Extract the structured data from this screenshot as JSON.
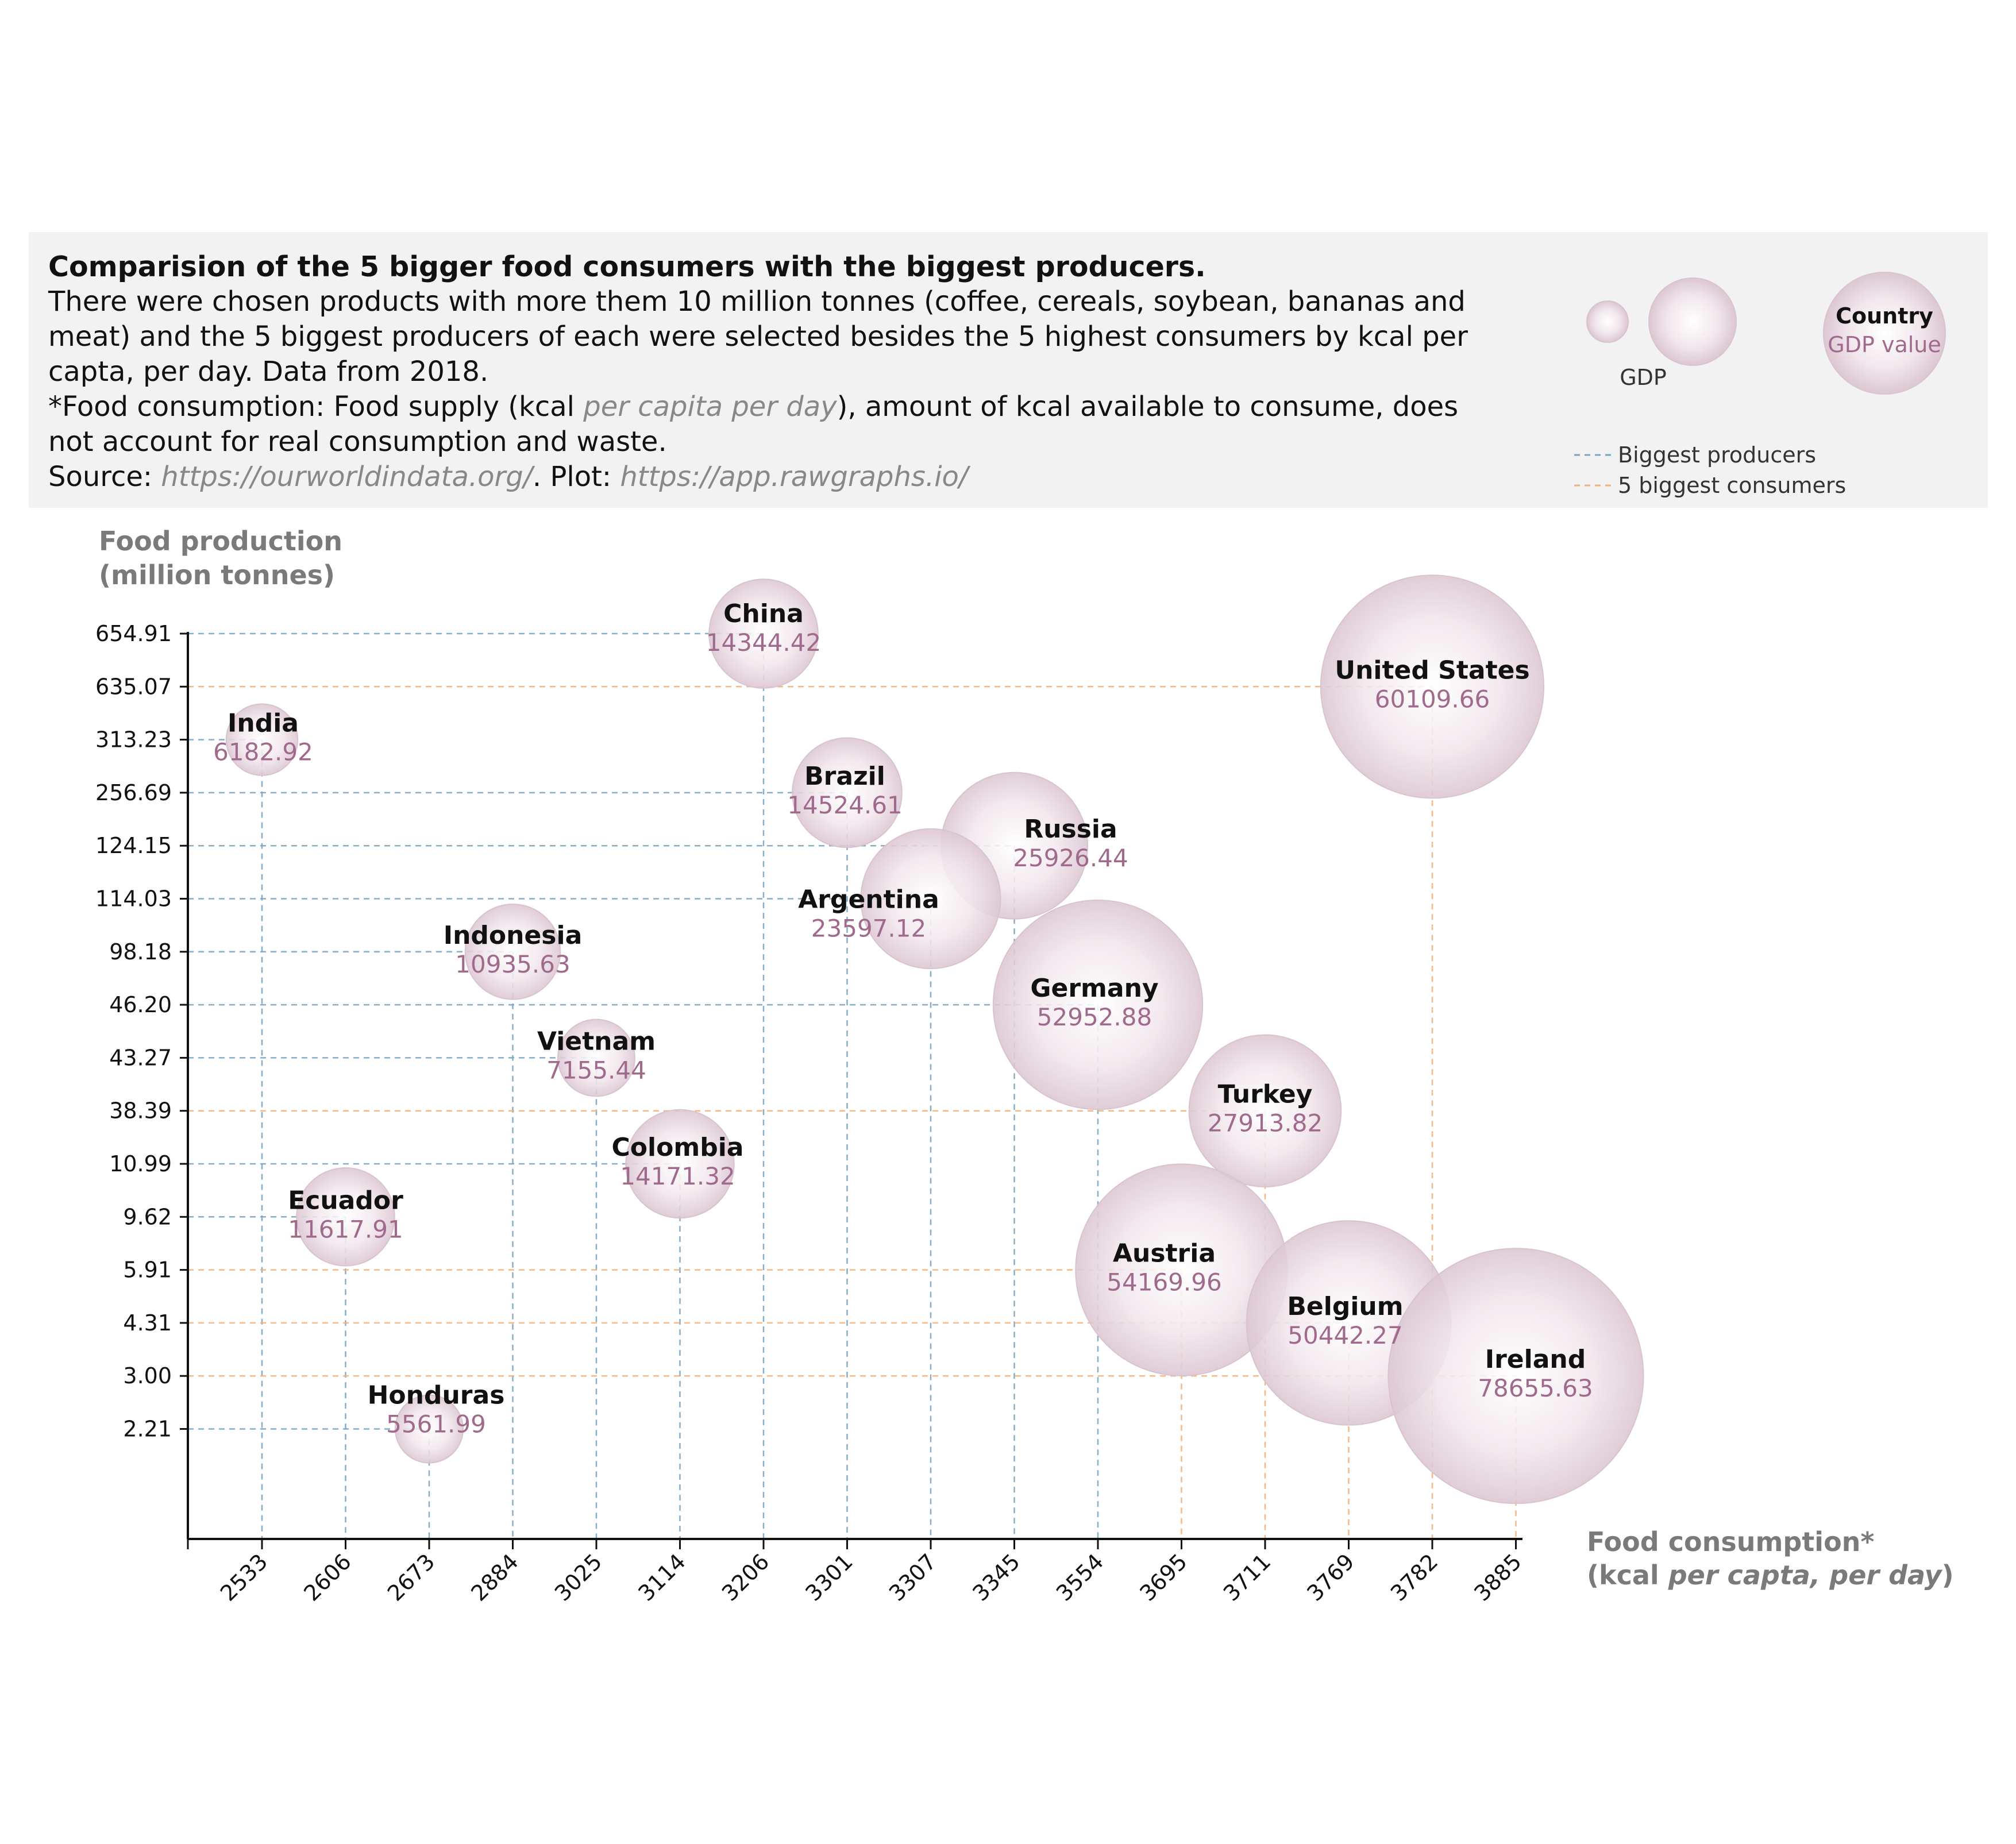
{
  "description": {
    "title": "Comparision of the 5 bigger food consumers with the biggest producers.",
    "line1": "There were chosen products with more them 10 million tonnes (coffee, cereals, soybean, bananas and meat) and the 5 biggest producers of each were selected besides the 5 highest consumers by kcal per capta, per day. Data from 2018.",
    "line2_pre": "*Food consumption: Food supply (kcal ",
    "line2_em": "per capita per day",
    "line2_post": "), amount of kcal available to consume, does not account for real consumption and waste.",
    "source_pre": "Source: ",
    "source_url": "https://ourworldindata.org/",
    "plot_pre": ". Plot: ",
    "plot_url": "https://app.rawgraphs.io/"
  },
  "legend": {
    "size_label": "GDP",
    "sample_country": "Country",
    "sample_value": "GDP value",
    "producers": "Biggest producers",
    "consumers": "5 biggest consumers"
  },
  "colors": {
    "bubble": "#e8d8e0",
    "bubble_edge": "#c9aebd",
    "gdp_text": "#a06a8c",
    "producers_line": "#7aa6c2",
    "consumers_line": "#f2b27a"
  },
  "chart_data": {
    "type": "scatter",
    "encoding": "bubble size = GDP",
    "xlabel": "Food consumption*",
    "xlabel_unit_pre": "(kcal ",
    "xlabel_unit_em": "per capta, per day",
    "xlabel_unit_post": ")",
    "ylabel_line1": "Food production",
    "ylabel_line2": "(million tonnes)",
    "x_ticks": [
      "2533",
      "2606",
      "2673",
      "2884",
      "3025",
      "3114",
      "3206",
      "3301",
      "3307",
      "3345",
      "3554",
      "3695",
      "3711",
      "3769",
      "3782",
      "3885"
    ],
    "y_ticks": [
      "654.91",
      "635.07",
      "313.23",
      "256.69",
      "124.15",
      "114.03",
      "98.18",
      "46.20",
      "43.27",
      "38.39",
      "10.99",
      "9.62",
      "5.91",
      "4.31",
      "3.00",
      "2.21"
    ],
    "points": [
      {
        "country": "China",
        "x": 3206,
        "y": 654.91,
        "gdp": 14344.42,
        "group": "producer"
      },
      {
        "country": "United States",
        "x": 3782,
        "y": 635.07,
        "gdp": 60109.66,
        "group": "consumer"
      },
      {
        "country": "India",
        "x": 2533,
        "y": 313.23,
        "gdp": 6182.92,
        "group": "producer"
      },
      {
        "country": "Brazil",
        "x": 3301,
        "y": 256.69,
        "gdp": 14524.61,
        "group": "producer"
      },
      {
        "country": "Russia",
        "x": 3345,
        "y": 124.15,
        "gdp": 25926.44,
        "group": "producer"
      },
      {
        "country": "Argentina",
        "x": 3307,
        "y": 114.03,
        "gdp": 23597.12,
        "group": "producer"
      },
      {
        "country": "Indonesia",
        "x": 2884,
        "y": 98.18,
        "gdp": 10935.63,
        "group": "producer"
      },
      {
        "country": "Germany",
        "x": 3554,
        "y": 46.2,
        "gdp": 52952.88,
        "group": "producer"
      },
      {
        "country": "Vietnam",
        "x": 3025,
        "y": 43.27,
        "gdp": 7155.44,
        "group": "producer"
      },
      {
        "country": "Turkey",
        "x": 3711,
        "y": 38.39,
        "gdp": 27913.82,
        "group": "consumer"
      },
      {
        "country": "Colombia",
        "x": 3114,
        "y": 10.99,
        "gdp": 14171.32,
        "group": "producer"
      },
      {
        "country": "Ecuador",
        "x": 2606,
        "y": 9.62,
        "gdp": 11617.91,
        "group": "producer"
      },
      {
        "country": "Austria",
        "x": 3695,
        "y": 5.91,
        "gdp": 54169.96,
        "group": "consumer"
      },
      {
        "country": "Belgium",
        "x": 3769,
        "y": 4.31,
        "gdp": 50442.27,
        "group": "consumer"
      },
      {
        "country": "Ireland",
        "x": 3885,
        "y": 3.0,
        "gdp": 78655.63,
        "group": "consumer"
      },
      {
        "country": "Honduras",
        "x": 2673,
        "y": 2.21,
        "gdp": 5561.99,
        "group": "producer"
      }
    ]
  }
}
